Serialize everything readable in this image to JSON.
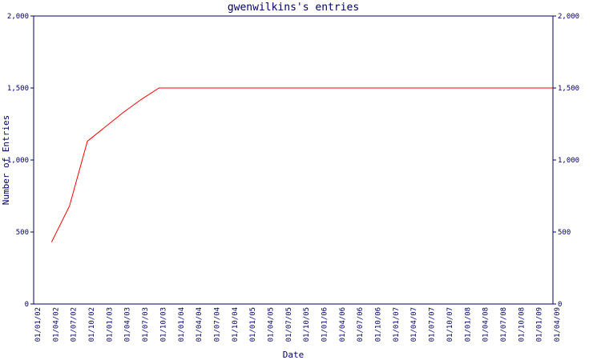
{
  "chart_data": {
    "type": "line",
    "title": "gwenwilkins's entries",
    "x_label": "Date",
    "y_label": "Number of Entries",
    "categories": [
      "01/01/02",
      "01/04/02",
      "01/07/02",
      "01/10/02",
      "01/01/03",
      "01/04/03",
      "01/07/03",
      "01/10/03",
      "01/01/04",
      "01/04/04",
      "01/07/04",
      "01/10/04",
      "01/01/05",
      "01/04/05",
      "01/07/05",
      "01/10/05",
      "01/01/06",
      "01/04/06",
      "01/07/06",
      "01/10/06",
      "01/01/07",
      "01/04/07",
      "01/07/07",
      "01/10/07",
      "01/01/08",
      "01/04/08",
      "01/07/08",
      "01/10/08",
      "01/01/09",
      "01/04/09"
    ],
    "series": [
      {
        "name": "entries",
        "color": "#ff0000",
        "values": [
          null,
          430,
          680,
          1130,
          1230,
          1330,
          1420,
          1500,
          1500,
          1500,
          1500,
          1500,
          1500,
          1500,
          1500,
          1500,
          1500,
          1500,
          1500,
          1500,
          1500,
          1500,
          1500,
          1500,
          1500,
          1500,
          1500,
          1500,
          1500,
          1500
        ]
      }
    ],
    "ylim": [
      0,
      2000
    ],
    "yticks": [
      0,
      500,
      {
        "value": 1000,
        "label": "1,000"
      },
      {
        "value": 1500,
        "label": "1,500"
      },
      {
        "value": 2000,
        "label": "2,000"
      }
    ],
    "y2lim": [
      0,
      2000
    ],
    "y2ticks": [
      0,
      500,
      {
        "value": 1000,
        "label": "1,000"
      },
      {
        "value": 1500,
        "label": "1,500"
      },
      {
        "value": 2000,
        "label": "2,000"
      }
    ],
    "axis_color": "#000066"
  }
}
